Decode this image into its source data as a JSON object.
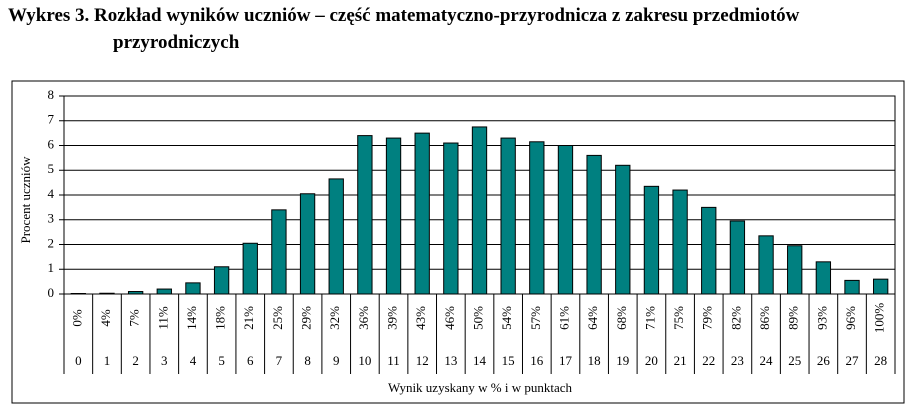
{
  "chart_data": {
    "type": "bar",
    "title": "Wykres 3. Rozkład wyników uczniów – część matematyczno-przyrodnicza z zakresu przedmiotów przyrodniczych",
    "ylabel": "Procent uczniów",
    "xlabel": "Wynik uzyskany w % i w punktach",
    "categories": [
      "0%",
      "4%",
      "7%",
      "11%",
      "14%",
      "18%",
      "21%",
      "25%",
      "29%",
      "32%",
      "36%",
      "39%",
      "43%",
      "46%",
      "50%",
      "54%",
      "57%",
      "61%",
      "64%",
      "68%",
      "71%",
      "75%",
      "79%",
      "82%",
      "86%",
      "89%",
      "93%",
      "96%",
      "100%"
    ],
    "category_points": [
      0,
      1,
      2,
      3,
      4,
      5,
      6,
      7,
      8,
      9,
      10,
      11,
      12,
      13,
      14,
      15,
      16,
      17,
      18,
      19,
      20,
      21,
      22,
      23,
      24,
      25,
      26,
      27,
      28
    ],
    "values": [
      0.02,
      0.03,
      0.1,
      0.2,
      0.45,
      1.1,
      2.05,
      3.4,
      4.05,
      4.65,
      6.4,
      6.3,
      6.5,
      6.1,
      6.75,
      6.3,
      6.15,
      6.0,
      5.6,
      5.2,
      4.35,
      4.2,
      3.5,
      2.95,
      2.35,
      1.95,
      1.3,
      0.55,
      0.6
    ],
    "color": "#008080",
    "ylim": [
      0,
      8
    ],
    "yticks": [
      0,
      1,
      2,
      3,
      4,
      5,
      6,
      7,
      8
    ],
    "grid": true
  }
}
